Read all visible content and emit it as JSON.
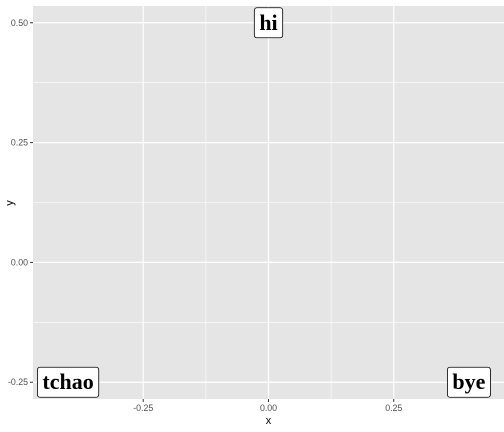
{
  "chart_data": {
    "type": "scatter",
    "points": [
      {
        "x": 0.0,
        "y": 0.5,
        "label": "hi"
      },
      {
        "x": -0.4,
        "y": -0.25,
        "label": "tchao"
      },
      {
        "x": 0.4,
        "y": -0.25,
        "label": "bye"
      }
    ],
    "xlabel": "x",
    "ylabel": "y",
    "xlim": [
      -0.47,
      0.47
    ],
    "ylim": [
      -0.285,
      0.535
    ],
    "x_ticks": [
      {
        "value": -0.25,
        "label": "-0.25"
      },
      {
        "value": 0.0,
        "label": "0.00"
      },
      {
        "value": 0.25,
        "label": "0.25"
      }
    ],
    "y_ticks": [
      {
        "value": -0.25,
        "label": "-0.25"
      },
      {
        "value": 0.0,
        "label": "0.00"
      },
      {
        "value": 0.25,
        "label": "0.25"
      },
      {
        "value": 0.5,
        "label": "0.50"
      }
    ],
    "grid": true,
    "panel_color": "#e5e5e5",
    "grid_color": "#ffffff",
    "label_fill": "#ffffff"
  }
}
